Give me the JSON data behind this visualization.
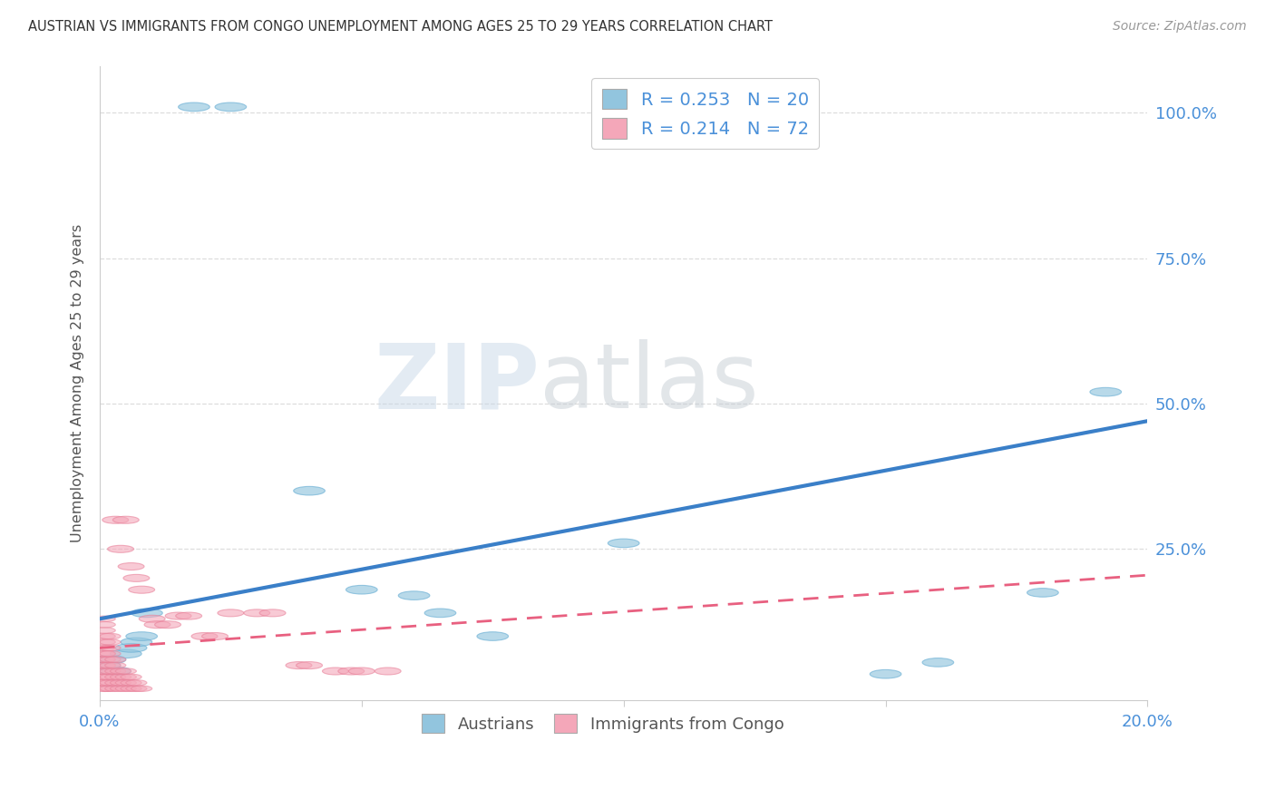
{
  "title": "AUSTRIAN VS IMMIGRANTS FROM CONGO UNEMPLOYMENT AMONG AGES 25 TO 29 YEARS CORRELATION CHART",
  "source": "Source: ZipAtlas.com",
  "ylabel": "Unemployment Among Ages 25 to 29 years",
  "ytick_labels": [
    "100.0%",
    "75.0%",
    "50.0%",
    "25.0%"
  ],
  "ytick_values": [
    1.0,
    0.75,
    0.5,
    0.25
  ],
  "xlim": [
    0.0,
    0.2
  ],
  "ylim": [
    -0.01,
    1.08
  ],
  "austrian_color": "#92C5DE",
  "austrian_edge_color": "#6AAFD4",
  "congo_color": "#F4A7B9",
  "congo_edge_color": "#E88099",
  "trendline_austrian_color": "#3A7FC8",
  "trendline_congo_color": "#E86080",
  "watermark_zip": "ZIP",
  "watermark_atlas": "atlas",
  "background_color": "#FFFFFF",
  "grid_color": "#DDDDDD",
  "title_color": "#333333",
  "tick_color": "#4A90D9",
  "legend_text_color": "#4A90D9",
  "aus_trend_x0": 0.0,
  "aus_trend_y0": 0.13,
  "aus_trend_x1": 0.2,
  "aus_trend_y1": 0.47,
  "congo_trend_x0": 0.0,
  "congo_trend_y0": 0.08,
  "congo_trend_x1": 0.2,
  "congo_trend_y1": 0.205,
  "austrians_x": [
    0.001,
    0.002,
    0.003,
    0.005,
    0.006,
    0.007,
    0.008,
    0.009,
    0.018,
    0.025,
    0.04,
    0.05,
    0.06,
    0.065,
    0.075,
    0.1,
    0.15,
    0.16,
    0.18,
    0.192
  ],
  "austrians_y": [
    0.05,
    0.06,
    0.04,
    0.07,
    0.08,
    0.09,
    0.1,
    0.14,
    1.01,
    1.01,
    0.35,
    0.18,
    0.17,
    0.14,
    0.1,
    0.26,
    0.035,
    0.055,
    0.175,
    0.52
  ],
  "congo_dense_x": [
    0.001,
    0.001,
    0.001,
    0.001,
    0.001,
    0.001,
    0.001,
    0.001,
    0.001,
    0.001,
    0.001,
    0.001,
    0.001,
    0.001,
    0.001,
    0.001,
    0.001,
    0.001,
    0.001,
    0.001,
    0.002,
    0.002,
    0.002,
    0.002,
    0.002,
    0.002,
    0.002,
    0.002,
    0.002,
    0.002,
    0.003,
    0.003,
    0.003,
    0.003,
    0.003,
    0.003,
    0.004,
    0.004,
    0.004,
    0.004,
    0.005,
    0.005,
    0.005,
    0.005,
    0.006,
    0.006,
    0.006,
    0.007,
    0.007,
    0.008
  ],
  "congo_dense_y": [
    0.01,
    0.01,
    0.02,
    0.02,
    0.03,
    0.03,
    0.04,
    0.04,
    0.05,
    0.05,
    0.06,
    0.06,
    0.07,
    0.07,
    0.08,
    0.09,
    0.1,
    0.11,
    0.12,
    0.13,
    0.01,
    0.02,
    0.03,
    0.04,
    0.05,
    0.06,
    0.07,
    0.08,
    0.09,
    0.1,
    0.01,
    0.02,
    0.03,
    0.04,
    0.05,
    0.06,
    0.01,
    0.02,
    0.03,
    0.04,
    0.01,
    0.02,
    0.03,
    0.04,
    0.01,
    0.02,
    0.03,
    0.01,
    0.02,
    0.01
  ],
  "congo_scatter_x": [
    0.003,
    0.004,
    0.005,
    0.006,
    0.007,
    0.008,
    0.01,
    0.011,
    0.013,
    0.015,
    0.017,
    0.02,
    0.022,
    0.025,
    0.03,
    0.033,
    0.038,
    0.04,
    0.045,
    0.048,
    0.05,
    0.055
  ],
  "congo_scatter_y": [
    0.3,
    0.25,
    0.3,
    0.22,
    0.2,
    0.18,
    0.13,
    0.12,
    0.12,
    0.135,
    0.135,
    0.1,
    0.1,
    0.14,
    0.14,
    0.14,
    0.05,
    0.05,
    0.04,
    0.04,
    0.04,
    0.04
  ]
}
